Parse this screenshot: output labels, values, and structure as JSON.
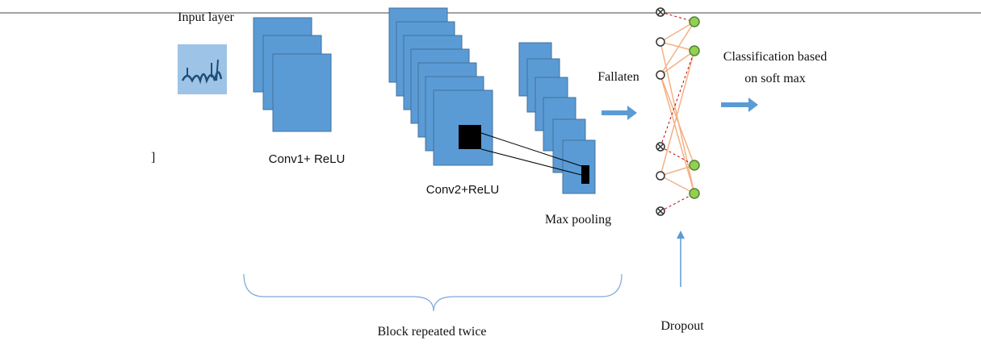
{
  "labels": {
    "input_layer": "Input layer",
    "conv1": "Conv1+ ReLU",
    "conv2": "Conv2+ReLU",
    "max_pooling": "Max pooling",
    "flatten": "Fallaten",
    "classification": [
      "Classification based",
      "on soft max"
    ],
    "dropout": "Dropout",
    "block": "Block repeated twice",
    "stray_mark": "]"
  }
}
